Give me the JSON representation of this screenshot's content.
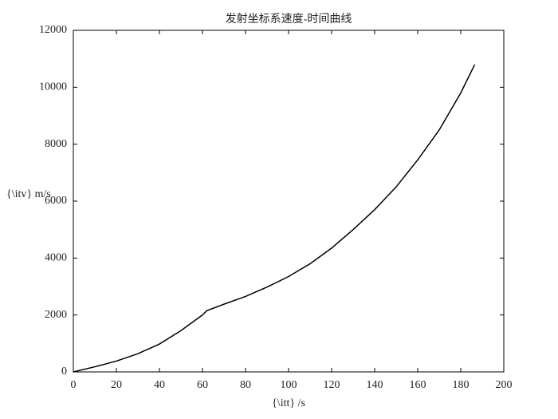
{
  "chart_data": {
    "type": "line",
    "title": "发射坐标系速度-时间曲线",
    "x_label": "{\\itt} /s",
    "y_label": "{\\itv} m/s",
    "x": [
      0,
      10,
      20,
      30,
      40,
      50,
      60,
      62,
      70,
      80,
      90,
      100,
      110,
      120,
      130,
      140,
      150,
      160,
      170,
      180,
      186.5
    ],
    "series": [
      {
        "color": "#000000",
        "values": [
          0,
          180,
          380,
          640,
          980,
          1450,
          2000,
          2150,
          2380,
          2650,
          2980,
          3350,
          3800,
          4350,
          5000,
          5700,
          6500,
          7450,
          8500,
          9800,
          10800
        ]
      }
    ],
    "xlim": [
      0,
      200
    ],
    "xticks": [
      0,
      20,
      40,
      60,
      80,
      100,
      120,
      140,
      160,
      180,
      200
    ],
    "ylim": [
      0,
      12000
    ],
    "yticks": [
      0,
      2000,
      4000,
      6000,
      8000,
      10000,
      12000
    ],
    "grid": false
  }
}
